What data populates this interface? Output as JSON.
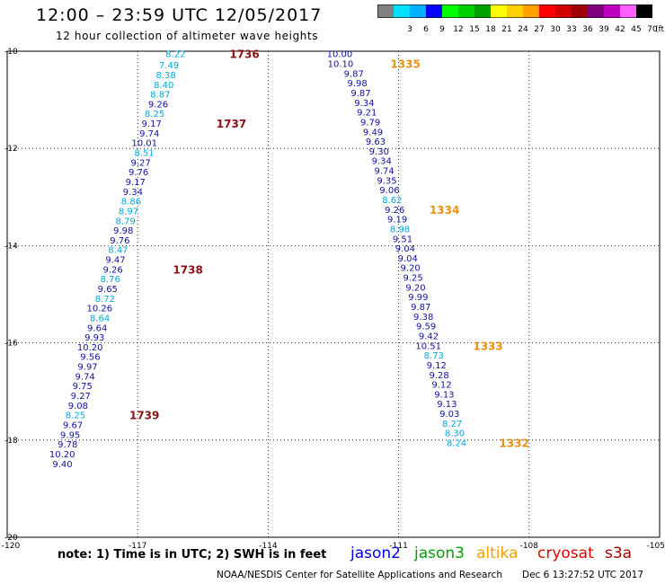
{
  "header": {
    "title": "12:00 – 23:59 UTC 12/05/2017",
    "subtitle": "12 hour collection of altimeter wave heights"
  },
  "colorbar": {
    "unit_label": "(ft)",
    "bins": [
      {
        "label": "",
        "color": "#808080"
      },
      {
        "label": "3",
        "color": "#00e0ff"
      },
      {
        "label": "6",
        "color": "#00b0ff"
      },
      {
        "label": "9",
        "color": "#0000ff"
      },
      {
        "label": "12",
        "color": "#00ff00"
      },
      {
        "label": "15",
        "color": "#00d000"
      },
      {
        "label": "18",
        "color": "#00a000"
      },
      {
        "label": "21",
        "color": "#ffff00"
      },
      {
        "label": "24",
        "color": "#ffd000"
      },
      {
        "label": "27",
        "color": "#ffa000"
      },
      {
        "label": "30",
        "color": "#ff0000"
      },
      {
        "label": "33",
        "color": "#d00000"
      },
      {
        "label": "36",
        "color": "#a00000"
      },
      {
        "label": "39",
        "color": "#800080"
      },
      {
        "label": "42",
        "color": "#c000c0"
      },
      {
        "label": "45",
        "color": "#ff60ff"
      },
      {
        "label": "70",
        "color": "#000000"
      }
    ]
  },
  "chart_data": {
    "type": "scatter",
    "x_ticks": [
      "-120",
      "-117",
      "-114",
      "-111",
      "-108",
      "-105"
    ],
    "y_ticks": [
      "-10",
      "-12",
      "-14",
      "-16",
      "-18",
      "-20"
    ],
    "xlim": [
      -120,
      -105
    ],
    "ylim": [
      -20,
      -10
    ],
    "grid": true,
    "colors": {
      "dark": "#1010a0",
      "light": "#00a8d8",
      "time": "#8b1010",
      "time_alt": "#e89010"
    },
    "tracks": [
      {
        "satellite": "cryosat",
        "points": [
          {
            "lon": -115.9,
            "lat": -10.05,
            "v": "8.22",
            "c": "light"
          },
          {
            "lon": -116.05,
            "lat": -10.28,
            "v": "7.49",
            "c": "light"
          },
          {
            "lon": -116.12,
            "lat": -10.48,
            "v": "8.38",
            "c": "light"
          },
          {
            "lon": -116.17,
            "lat": -10.68,
            "v": "8.40",
            "c": "light"
          },
          {
            "lon": -116.25,
            "lat": -10.88,
            "v": "8.87",
            "c": "light"
          },
          {
            "lon": -116.3,
            "lat": -11.08,
            "v": "9.26",
            "c": "dark"
          },
          {
            "lon": -116.38,
            "lat": -11.28,
            "v": "8.25",
            "c": "light"
          },
          {
            "lon": -116.45,
            "lat": -11.48,
            "v": "9.17",
            "c": "dark"
          },
          {
            "lon": -116.5,
            "lat": -11.68,
            "v": "9.74",
            "c": "dark"
          },
          {
            "lon": -116.55,
            "lat": -11.88,
            "v": "10.01",
            "c": "dark"
          },
          {
            "lon": -116.62,
            "lat": -12.08,
            "v": "8.51",
            "c": "light"
          },
          {
            "lon": -116.7,
            "lat": -12.28,
            "v": "9.27",
            "c": "dark"
          },
          {
            "lon": -116.75,
            "lat": -12.48,
            "v": "9.76",
            "c": "dark"
          },
          {
            "lon": -116.82,
            "lat": -12.68,
            "v": "9.17",
            "c": "dark"
          },
          {
            "lon": -116.88,
            "lat": -12.88,
            "v": "9.34",
            "c": "dark"
          },
          {
            "lon": -116.92,
            "lat": -13.08,
            "v": "8.86",
            "c": "light"
          },
          {
            "lon": -116.98,
            "lat": -13.28,
            "v": "8.97",
            "c": "light"
          },
          {
            "lon": -117.05,
            "lat": -13.48,
            "v": "8.79",
            "c": "light"
          },
          {
            "lon": -117.1,
            "lat": -13.68,
            "v": "9.98",
            "c": "dark"
          },
          {
            "lon": -117.18,
            "lat": -13.88,
            "v": "9.76",
            "c": "dark"
          },
          {
            "lon": -117.22,
            "lat": -14.08,
            "v": "8.47",
            "c": "light"
          },
          {
            "lon": -117.28,
            "lat": -14.28,
            "v": "9.47",
            "c": "dark"
          },
          {
            "lon": -117.34,
            "lat": -14.48,
            "v": "9.26",
            "c": "dark"
          },
          {
            "lon": -117.4,
            "lat": -14.68,
            "v": "8.76",
            "c": "light"
          },
          {
            "lon": -117.46,
            "lat": -14.88,
            "v": "9.65",
            "c": "dark"
          },
          {
            "lon": -117.52,
            "lat": -15.08,
            "v": "8.72",
            "c": "light"
          },
          {
            "lon": -117.58,
            "lat": -15.28,
            "v": "10.26",
            "c": "dark"
          },
          {
            "lon": -117.64,
            "lat": -15.48,
            "v": "8.64",
            "c": "light"
          },
          {
            "lon": -117.7,
            "lat": -15.68,
            "v": "9.64",
            "c": "dark"
          },
          {
            "lon": -117.76,
            "lat": -15.88,
            "v": "9.93",
            "c": "dark"
          },
          {
            "lon": -117.8,
            "lat": -16.08,
            "v": "10.20",
            "c": "dark"
          },
          {
            "lon": -117.86,
            "lat": -16.28,
            "v": "9.56",
            "c": "dark"
          },
          {
            "lon": -117.92,
            "lat": -16.48,
            "v": "9.97",
            "c": "dark"
          },
          {
            "lon": -117.98,
            "lat": -16.68,
            "v": "9.74",
            "c": "dark"
          },
          {
            "lon": -118.04,
            "lat": -16.88,
            "v": "9.75",
            "c": "dark"
          },
          {
            "lon": -118.08,
            "lat": -17.08,
            "v": "9.27",
            "c": "dark"
          },
          {
            "lon": -118.14,
            "lat": -17.28,
            "v": "9.08",
            "c": "dark"
          },
          {
            "lon": -118.2,
            "lat": -17.48,
            "v": "8.25",
            "c": "light"
          },
          {
            "lon": -118.26,
            "lat": -17.68,
            "v": "9.67",
            "c": "dark"
          },
          {
            "lon": -118.32,
            "lat": -17.88,
            "v": "9.95",
            "c": "dark"
          },
          {
            "lon": -118.38,
            "lat": -18.08,
            "v": "9.78",
            "c": "dark"
          },
          {
            "lon": -118.44,
            "lat": -18.28,
            "v": "10.20",
            "c": "dark"
          },
          {
            "lon": -118.5,
            "lat": -18.48,
            "v": "9.40",
            "c": "dark"
          }
        ],
        "times": [
          {
            "lon": -114.2,
            "lat": -10.05,
            "t": "1736"
          },
          {
            "lon": -114.5,
            "lat": -11.48,
            "t": "1737"
          },
          {
            "lon": -115.5,
            "lat": -14.48,
            "t": "1738"
          },
          {
            "lon": -116.5,
            "lat": -17.48,
            "t": "1739"
          }
        ]
      },
      {
        "satellite": "altika",
        "points": [
          {
            "lon": -112.06,
            "lat": -10.05,
            "v": "10.00",
            "c": "dark"
          },
          {
            "lon": -112.04,
            "lat": -10.25,
            "v": "10.10",
            "c": "dark"
          },
          {
            "lon": -111.8,
            "lat": -10.45,
            "v": "9.87",
            "c": "dark"
          },
          {
            "lon": -111.72,
            "lat": -10.65,
            "v": "9.98",
            "c": "dark"
          },
          {
            "lon": -111.64,
            "lat": -10.85,
            "v": "9.87",
            "c": "dark"
          },
          {
            "lon": -111.56,
            "lat": -11.05,
            "v": "9.34",
            "c": "dark"
          },
          {
            "lon": -111.5,
            "lat": -11.25,
            "v": "9.21",
            "c": "dark"
          },
          {
            "lon": -111.42,
            "lat": -11.45,
            "v": "9.79",
            "c": "dark"
          },
          {
            "lon": -111.36,
            "lat": -11.65,
            "v": "9.49",
            "c": "dark"
          },
          {
            "lon": -111.3,
            "lat": -11.85,
            "v": "9.63",
            "c": "dark"
          },
          {
            "lon": -111.22,
            "lat": -12.05,
            "v": "9.30",
            "c": "dark"
          },
          {
            "lon": -111.16,
            "lat": -12.25,
            "v": "9.34",
            "c": "dark"
          },
          {
            "lon": -111.1,
            "lat": -12.45,
            "v": "9.74",
            "c": "dark"
          },
          {
            "lon": -111.04,
            "lat": -12.65,
            "v": "9.35",
            "c": "dark"
          },
          {
            "lon": -110.98,
            "lat": -12.85,
            "v": "9.06",
            "c": "dark"
          },
          {
            "lon": -110.92,
            "lat": -13.05,
            "v": "8.62",
            "c": "light"
          },
          {
            "lon": -110.86,
            "lat": -13.25,
            "v": "9.26",
            "c": "dark"
          },
          {
            "lon": -110.8,
            "lat": -13.45,
            "v": "9.19",
            "c": "dark"
          },
          {
            "lon": -110.74,
            "lat": -13.65,
            "v": "8.98",
            "c": "light"
          },
          {
            "lon": -110.68,
            "lat": -13.85,
            "v": "9.51",
            "c": "dark"
          },
          {
            "lon": -110.62,
            "lat": -14.05,
            "v": "9.04",
            "c": "dark"
          },
          {
            "lon": -110.56,
            "lat": -14.25,
            "v": "9.04",
            "c": "dark"
          },
          {
            "lon": -110.5,
            "lat": -14.45,
            "v": "9.20",
            "c": "dark"
          },
          {
            "lon": -110.44,
            "lat": -14.65,
            "v": "9.25",
            "c": "dark"
          },
          {
            "lon": -110.38,
            "lat": -14.85,
            "v": "9.20",
            "c": "dark"
          },
          {
            "lon": -110.32,
            "lat": -15.05,
            "v": "9.99",
            "c": "dark"
          },
          {
            "lon": -110.26,
            "lat": -15.25,
            "v": "9.87",
            "c": "dark"
          },
          {
            "lon": -110.2,
            "lat": -15.45,
            "v": "9.38",
            "c": "dark"
          },
          {
            "lon": -110.14,
            "lat": -15.65,
            "v": "9.59",
            "c": "dark"
          },
          {
            "lon": -110.08,
            "lat": -15.85,
            "v": "9.42",
            "c": "dark"
          },
          {
            "lon": -110.02,
            "lat": -16.05,
            "v": "10.51",
            "c": "dark"
          },
          {
            "lon": -109.96,
            "lat": -16.25,
            "v": "8.73",
            "c": "light"
          },
          {
            "lon": -109.9,
            "lat": -16.45,
            "v": "9.12",
            "c": "dark"
          },
          {
            "lon": -109.84,
            "lat": -16.65,
            "v": "9.28",
            "c": "dark"
          },
          {
            "lon": -109.78,
            "lat": -16.85,
            "v": "9.12",
            "c": "dark"
          },
          {
            "lon": -109.72,
            "lat": -17.05,
            "v": "9.13",
            "c": "dark"
          },
          {
            "lon": -109.66,
            "lat": -17.25,
            "v": "9.13",
            "c": "dark"
          },
          {
            "lon": -109.6,
            "lat": -17.45,
            "v": "9.03",
            "c": "dark"
          },
          {
            "lon": -109.54,
            "lat": -17.65,
            "v": "8.27",
            "c": "light"
          },
          {
            "lon": -109.48,
            "lat": -17.85,
            "v": "8.30",
            "c": "light"
          },
          {
            "lon": -109.44,
            "lat": -18.05,
            "v": "8.24",
            "c": "light"
          }
        ],
        "times": [
          {
            "lon": -110.5,
            "lat": -10.25,
            "t": "1335"
          },
          {
            "lon": -109.6,
            "lat": -13.25,
            "t": "1334"
          },
          {
            "lon": -108.6,
            "lat": -16.05,
            "t": "1333"
          },
          {
            "lon": -108.0,
            "lat": -18.05,
            "t": "1332"
          }
        ]
      }
    ]
  },
  "footer": {
    "note": "note: 1) Time is in UTC; 2) SWH is in feet",
    "credit": "NOAA/NESDIS Center for Satellite Applications and Research",
    "timestamp": "Dec  6 13:27:52 UTC 2017"
  },
  "legend": [
    {
      "label": "jason2",
      "color": "#0000e0"
    },
    {
      "label": "jason3",
      "color": "#00a000"
    },
    {
      "label": "altika",
      "color": "#f0a000"
    },
    {
      "label": "cryosat",
      "color": "#e00000"
    },
    {
      "label": "s3a",
      "color": "#a00000"
    }
  ]
}
